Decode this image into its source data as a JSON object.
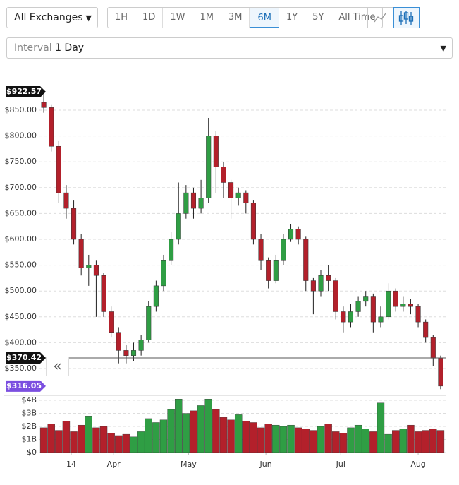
{
  "controls": {
    "exchange": "All Exchanges",
    "ranges": [
      "1H",
      "1D",
      "1W",
      "1M",
      "3M",
      "6M",
      "1Y",
      "5Y",
      "All Time"
    ],
    "active_range": "6M",
    "interval_label": "Interval",
    "interval_value": "1 Day"
  },
  "chart_data": {
    "type": "candlestick",
    "x": [
      63,
      66,
      69,
      72,
      75,
      78,
      81,
      84,
      87,
      90,
      93,
      96,
      99,
      102,
      105,
      108,
      111,
      114,
      117,
      120,
      123,
      126,
      129,
      132,
      135,
      138,
      141,
      144,
      147,
      150,
      153,
      156,
      159,
      162,
      165,
      168,
      171,
      174,
      177,
      180,
      183,
      186,
      189,
      192,
      195,
      198,
      201,
      204,
      207,
      210,
      213,
      216,
      219,
      222
    ],
    "open": [
      865,
      855,
      780,
      690,
      660,
      600,
      545,
      550,
      530,
      460,
      420,
      385,
      375,
      385,
      405,
      470,
      510,
      560,
      600,
      650,
      690,
      660,
      680,
      800,
      740,
      710,
      680,
      690,
      670,
      600,
      560,
      520,
      560,
      600,
      620,
      600,
      520,
      500,
      530,
      520,
      460,
      440,
      460,
      480,
      490,
      440,
      450,
      500,
      470,
      475,
      470,
      440,
      410,
      370
    ],
    "high": [
      880,
      860,
      790,
      705,
      675,
      610,
      570,
      560,
      535,
      470,
      430,
      395,
      400,
      415,
      480,
      520,
      570,
      615,
      710,
      705,
      700,
      715,
      835,
      810,
      750,
      715,
      700,
      695,
      675,
      610,
      565,
      570,
      610,
      630,
      625,
      605,
      525,
      540,
      550,
      525,
      470,
      475,
      490,
      500,
      495,
      470,
      515,
      505,
      490,
      485,
      475,
      445,
      415,
      375
    ],
    "low": [
      845,
      770,
      670,
      640,
      590,
      530,
      510,
      450,
      450,
      410,
      360,
      360,
      365,
      375,
      400,
      460,
      500,
      550,
      590,
      640,
      640,
      650,
      670,
      690,
      680,
      640,
      665,
      650,
      590,
      540,
      505,
      515,
      550,
      595,
      590,
      500,
      455,
      490,
      500,
      445,
      420,
      430,
      450,
      470,
      420,
      430,
      445,
      460,
      460,
      455,
      430,
      400,
      355,
      310
    ],
    "close": [
      855,
      780,
      690,
      660,
      600,
      545,
      550,
      530,
      460,
      420,
      385,
      375,
      385,
      405,
      470,
      510,
      560,
      600,
      650,
      690,
      660,
      680,
      800,
      740,
      710,
      680,
      690,
      670,
      600,
      560,
      520,
      560,
      600,
      620,
      600,
      520,
      500,
      530,
      520,
      460,
      440,
      460,
      480,
      490,
      440,
      450,
      500,
      470,
      475,
      470,
      440,
      410,
      370,
      316.05
    ],
    "volume": [
      1.9,
      2.2,
      1.7,
      2.4,
      1.6,
      2.1,
      2.8,
      1.9,
      2.0,
      1.5,
      1.3,
      1.4,
      1.2,
      1.6,
      2.6,
      2.3,
      2.5,
      3.3,
      4.1,
      3.0,
      3.2,
      3.6,
      4.1,
      3.3,
      2.7,
      2.5,
      2.9,
      2.4,
      2.3,
      1.9,
      2.2,
      2.1,
      2.0,
      2.1,
      1.9,
      1.8,
      1.7,
      2.0,
      2.2,
      1.6,
      1.5,
      1.9,
      2.1,
      1.8,
      1.6,
      3.8,
      1.4,
      1.7,
      1.8,
      2.1,
      1.6,
      1.7,
      1.8,
      1.7
    ],
    "up_color": "#2f9e44",
    "down_color": "#b3202b",
    "xlim": [
      61,
      224
    ],
    "xticks": [
      {
        "value": 74,
        "label": "14"
      },
      {
        "value": 91,
        "label": "Apr"
      },
      {
        "value": 121,
        "label": "May"
      },
      {
        "value": 152,
        "label": "Jun"
      },
      {
        "value": 182,
        "label": "Jul"
      },
      {
        "value": 213,
        "label": "Aug"
      }
    ],
    "ylim": [
      300,
      900
    ],
    "yticks": [
      {
        "value": 350,
        "label": "$350.00"
      },
      {
        "value": 400,
        "label": "$400.00"
      },
      {
        "value": 450,
        "label": "$450.00"
      },
      {
        "value": 500,
        "label": "$500.00"
      },
      {
        "value": 550,
        "label": "$550.00"
      },
      {
        "value": 600,
        "label": "$600.00"
      },
      {
        "value": 650,
        "label": "$650.00"
      },
      {
        "value": 700,
        "label": "$700.00"
      },
      {
        "value": 750,
        "label": "$750.00"
      },
      {
        "value": 800,
        "label": "$800.00"
      },
      {
        "value": 850,
        "label": "$850.00"
      }
    ],
    "y2lim": [
      0,
      4.3
    ],
    "y2ticks": [
      {
        "value": 0,
        "label": "$0"
      },
      {
        "value": 1,
        "label": "$1B"
      },
      {
        "value": 2,
        "label": "$2B"
      },
      {
        "value": 3,
        "label": "$3B"
      },
      {
        "value": 4,
        "label": "$4B"
      }
    ],
    "grid": true,
    "price_markers": [
      {
        "value": 922.57,
        "label": "$922.57",
        "color": "#111111"
      },
      {
        "value": 370.42,
        "label": "$370.42",
        "color": "#111111",
        "line": true
      },
      {
        "value": 316.05,
        "label": "$316.05",
        "color": "#7b4fe0"
      }
    ]
  }
}
